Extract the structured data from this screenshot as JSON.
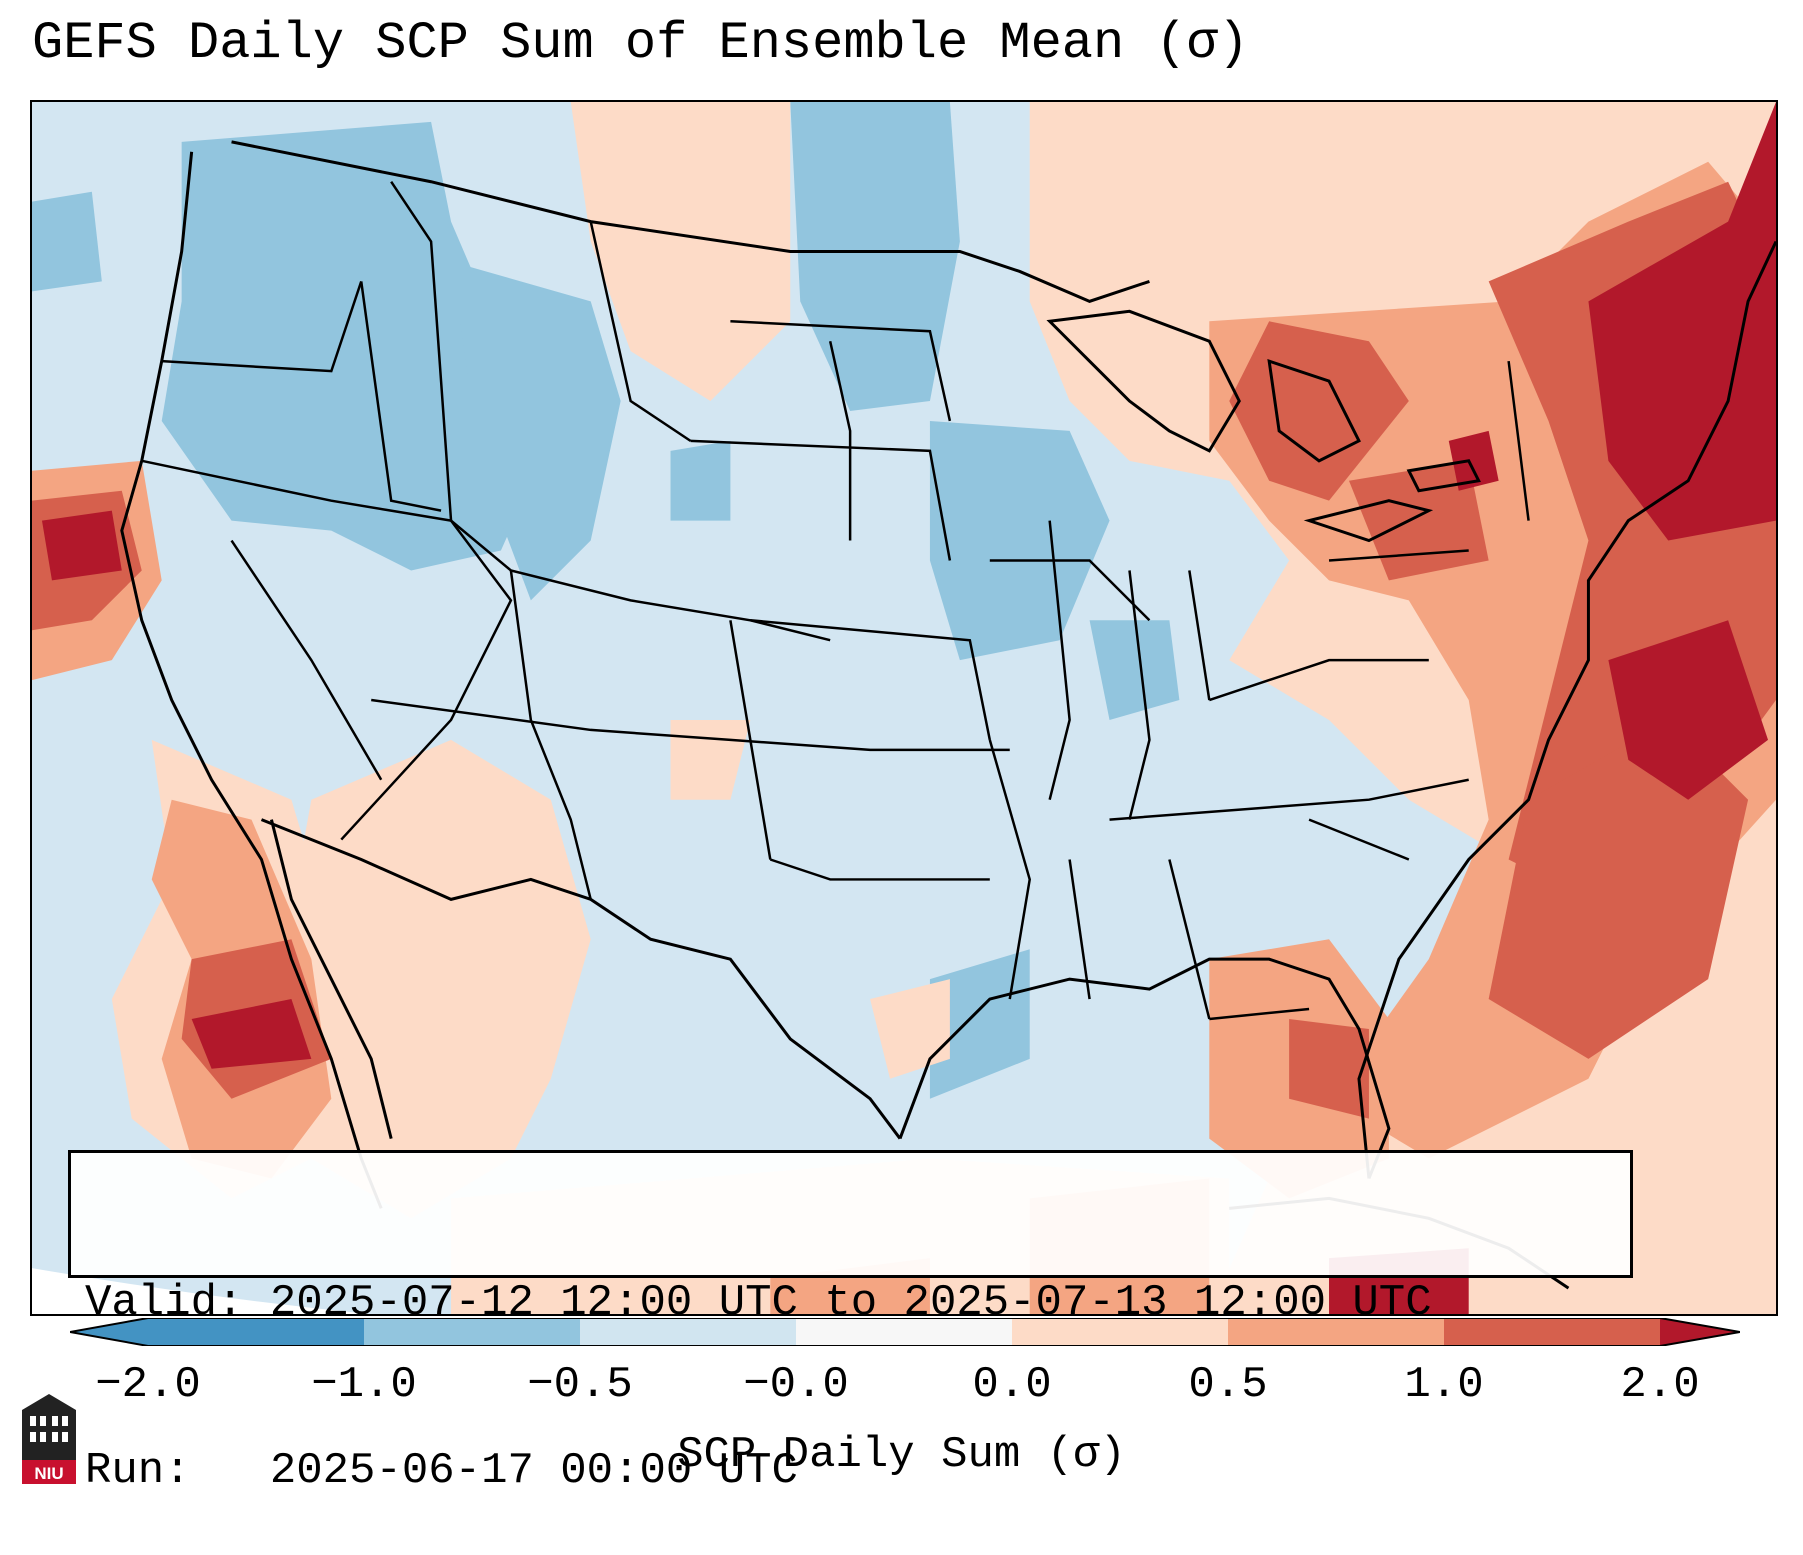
{
  "title": "GEFS Daily SCP Sum of Ensemble Mean (σ)",
  "info": {
    "valid": "Valid: 2025-07-12 12:00 UTC to 2025-07-13 12:00 UTC",
    "run": "Run:   2025-06-17 00:00 UTC"
  },
  "colorbar": {
    "label": "SCP Daily Sum (σ)",
    "ticks": [
      "−2.0",
      "−1.0",
      "−0.5",
      "−0.0",
      "0.0",
      "0.5",
      "1.0",
      "2.0"
    ],
    "colors": [
      "#4393c3",
      "#92c5de",
      "#d1e5f0",
      "#f7f7f7",
      "#fddbc7",
      "#f4a582",
      "#d6604d",
      "#b2182b"
    ]
  },
  "logo": {
    "text": "NIU",
    "color": "#c8102e"
  },
  "map": {
    "background_color": "#d3e6f2",
    "anomaly_regions": [
      "Pacific Northwest negative",
      "Northern Rockies negative",
      "Upper Midwest negative",
      "Great Lakes positive",
      "Northeast strong positive",
      "Western Atlantic strong positive",
      "Gulf of California positive",
      "Northern California coast strong positive",
      "Florida positive"
    ]
  }
}
